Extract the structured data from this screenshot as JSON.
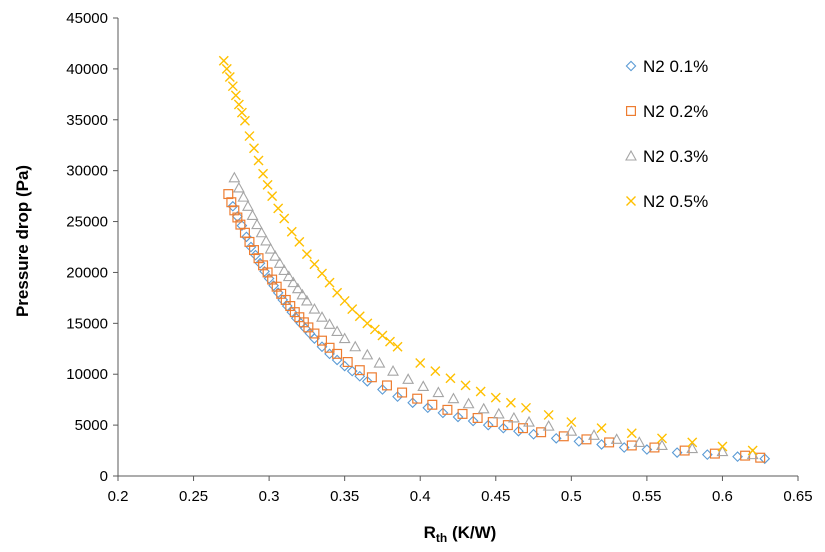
{
  "chart_data": {
    "type": "scatter",
    "title": "",
    "xlabel_main": "R",
    "xlabel_sub": "th",
    "xlabel_unit": " (K/W)",
    "ylabel": "Pressure drop (Pa)",
    "xlim": [
      0.2,
      0.65
    ],
    "ylim": [
      0,
      45000
    ],
    "xticks": [
      "0.2",
      "0.25",
      "0.3",
      "0.35",
      "0.4",
      "0.45",
      "0.5",
      "0.55",
      "0.6",
      "0.65"
    ],
    "yticks": [
      "0",
      "5000",
      "10000",
      "15000",
      "20000",
      "25000",
      "30000",
      "35000",
      "40000",
      "45000"
    ],
    "grid": false,
    "legend_position": "top-right",
    "series": [
      {
        "name": "N2 0.1%",
        "marker": "diamond",
        "color": "#5B9BD5",
        "points": [
          [
            0.276,
            26500
          ],
          [
            0.279,
            25500
          ],
          [
            0.282,
            24600
          ],
          [
            0.285,
            23500
          ],
          [
            0.288,
            22500
          ],
          [
            0.291,
            21700
          ],
          [
            0.294,
            20900
          ],
          [
            0.297,
            20100
          ],
          [
            0.3,
            19400
          ],
          [
            0.303,
            18700
          ],
          [
            0.306,
            18000
          ],
          [
            0.309,
            17300
          ],
          [
            0.312,
            16700
          ],
          [
            0.315,
            16100
          ],
          [
            0.318,
            15500
          ],
          [
            0.321,
            15000
          ],
          [
            0.324,
            14500
          ],
          [
            0.327,
            14000
          ],
          [
            0.33,
            13500
          ],
          [
            0.335,
            12700
          ],
          [
            0.34,
            12000
          ],
          [
            0.345,
            11400
          ],
          [
            0.35,
            10800
          ],
          [
            0.355,
            10300
          ],
          [
            0.36,
            9800
          ],
          [
            0.365,
            9300
          ],
          [
            0.375,
            8500
          ],
          [
            0.385,
            7800
          ],
          [
            0.395,
            7200
          ],
          [
            0.405,
            6700
          ],
          [
            0.415,
            6200
          ],
          [
            0.425,
            5800
          ],
          [
            0.435,
            5400
          ],
          [
            0.445,
            5000
          ],
          [
            0.455,
            4700
          ],
          [
            0.465,
            4400
          ],
          [
            0.475,
            4100
          ],
          [
            0.49,
            3700
          ],
          [
            0.505,
            3400
          ],
          [
            0.52,
            3100
          ],
          [
            0.535,
            2800
          ],
          [
            0.55,
            2600
          ],
          [
            0.57,
            2300
          ],
          [
            0.59,
            2100
          ],
          [
            0.61,
            1900
          ],
          [
            0.628,
            1700
          ]
        ]
      },
      {
        "name": "N2 0.2%",
        "marker": "square",
        "color": "#ED7D31",
        "points": [
          [
            0.273,
            27700
          ],
          [
            0.275,
            26900
          ],
          [
            0.277,
            26100
          ],
          [
            0.279,
            25400
          ],
          [
            0.281,
            24700
          ],
          [
            0.284,
            23900
          ],
          [
            0.287,
            23000
          ],
          [
            0.29,
            22200
          ],
          [
            0.293,
            21400
          ],
          [
            0.296,
            20700
          ],
          [
            0.299,
            20000
          ],
          [
            0.302,
            19300
          ],
          [
            0.305,
            18600
          ],
          [
            0.308,
            17900
          ],
          [
            0.311,
            17300
          ],
          [
            0.314,
            16700
          ],
          [
            0.317,
            16100
          ],
          [
            0.32,
            15600
          ],
          [
            0.323,
            15100
          ],
          [
            0.326,
            14600
          ],
          [
            0.33,
            14000
          ],
          [
            0.335,
            13300
          ],
          [
            0.34,
            12600
          ],
          [
            0.345,
            12000
          ],
          [
            0.352,
            11200
          ],
          [
            0.36,
            10400
          ],
          [
            0.368,
            9700
          ],
          [
            0.378,
            8900
          ],
          [
            0.388,
            8200
          ],
          [
            0.398,
            7600
          ],
          [
            0.408,
            7000
          ],
          [
            0.418,
            6500
          ],
          [
            0.428,
            6100
          ],
          [
            0.438,
            5700
          ],
          [
            0.448,
            5300
          ],
          [
            0.458,
            5000
          ],
          [
            0.468,
            4700
          ],
          [
            0.48,
            4300
          ],
          [
            0.495,
            3900
          ],
          [
            0.51,
            3600
          ],
          [
            0.525,
            3300
          ],
          [
            0.54,
            3000
          ],
          [
            0.555,
            2800
          ],
          [
            0.575,
            2500
          ],
          [
            0.595,
            2200
          ],
          [
            0.615,
            2000
          ],
          [
            0.625,
            1800
          ]
        ]
      },
      {
        "name": "N2 0.3%",
        "marker": "triangle",
        "color": "#A5A5A5",
        "points": [
          [
            0.277,
            29300
          ],
          [
            0.28,
            28300
          ],
          [
            0.283,
            27400
          ],
          [
            0.286,
            26500
          ],
          [
            0.289,
            25600
          ],
          [
            0.292,
            24700
          ],
          [
            0.295,
            23900
          ],
          [
            0.298,
            23100
          ],
          [
            0.301,
            22300
          ],
          [
            0.304,
            21600
          ],
          [
            0.307,
            20900
          ],
          [
            0.31,
            20200
          ],
          [
            0.313,
            19600
          ],
          [
            0.316,
            19000
          ],
          [
            0.319,
            18400
          ],
          [
            0.322,
            17800
          ],
          [
            0.325,
            17200
          ],
          [
            0.33,
            16400
          ],
          [
            0.335,
            15600
          ],
          [
            0.34,
            14900
          ],
          [
            0.345,
            14200
          ],
          [
            0.35,
            13500
          ],
          [
            0.357,
            12700
          ],
          [
            0.365,
            11900
          ],
          [
            0.373,
            11100
          ],
          [
            0.382,
            10300
          ],
          [
            0.392,
            9500
          ],
          [
            0.402,
            8800
          ],
          [
            0.412,
            8200
          ],
          [
            0.422,
            7600
          ],
          [
            0.432,
            7100
          ],
          [
            0.442,
            6600
          ],
          [
            0.452,
            6100
          ],
          [
            0.462,
            5700
          ],
          [
            0.472,
            5300
          ],
          [
            0.485,
            4900
          ],
          [
            0.5,
            4400
          ],
          [
            0.515,
            4000
          ],
          [
            0.53,
            3600
          ],
          [
            0.545,
            3300
          ],
          [
            0.56,
            3000
          ],
          [
            0.58,
            2700
          ],
          [
            0.6,
            2400
          ],
          [
            0.62,
            2100
          ]
        ]
      },
      {
        "name": "N2 0.5%",
        "marker": "x",
        "color": "#FFC000",
        "points": [
          [
            0.27,
            40800
          ],
          [
            0.272,
            40000
          ],
          [
            0.274,
            39200
          ],
          [
            0.276,
            38300
          ],
          [
            0.278,
            37400
          ],
          [
            0.28,
            36500
          ],
          [
            0.282,
            35700
          ],
          [
            0.284,
            34900
          ],
          [
            0.287,
            33400
          ],
          [
            0.29,
            32200
          ],
          [
            0.293,
            31000
          ],
          [
            0.296,
            29700
          ],
          [
            0.299,
            28600
          ],
          [
            0.302,
            27500
          ],
          [
            0.306,
            26300
          ],
          [
            0.31,
            25300
          ],
          [
            0.315,
            24000
          ],
          [
            0.32,
            23000
          ],
          [
            0.325,
            21800
          ],
          [
            0.33,
            20800
          ],
          [
            0.335,
            19900
          ],
          [
            0.34,
            19000
          ],
          [
            0.345,
            18000
          ],
          [
            0.35,
            17200
          ],
          [
            0.355,
            16400
          ],
          [
            0.36,
            15700
          ],
          [
            0.365,
            15000
          ],
          [
            0.37,
            14400
          ],
          [
            0.375,
            13800
          ],
          [
            0.38,
            13200
          ],
          [
            0.385,
            12700
          ],
          [
            0.4,
            11100
          ],
          [
            0.41,
            10300
          ],
          [
            0.42,
            9600
          ],
          [
            0.43,
            8900
          ],
          [
            0.44,
            8300
          ],
          [
            0.45,
            7700
          ],
          [
            0.46,
            7200
          ],
          [
            0.47,
            6700
          ],
          [
            0.485,
            6000
          ],
          [
            0.5,
            5300
          ],
          [
            0.52,
            4700
          ],
          [
            0.54,
            4200
          ],
          [
            0.56,
            3700
          ],
          [
            0.58,
            3300
          ],
          [
            0.6,
            2900
          ],
          [
            0.62,
            2500
          ]
        ]
      }
    ]
  }
}
